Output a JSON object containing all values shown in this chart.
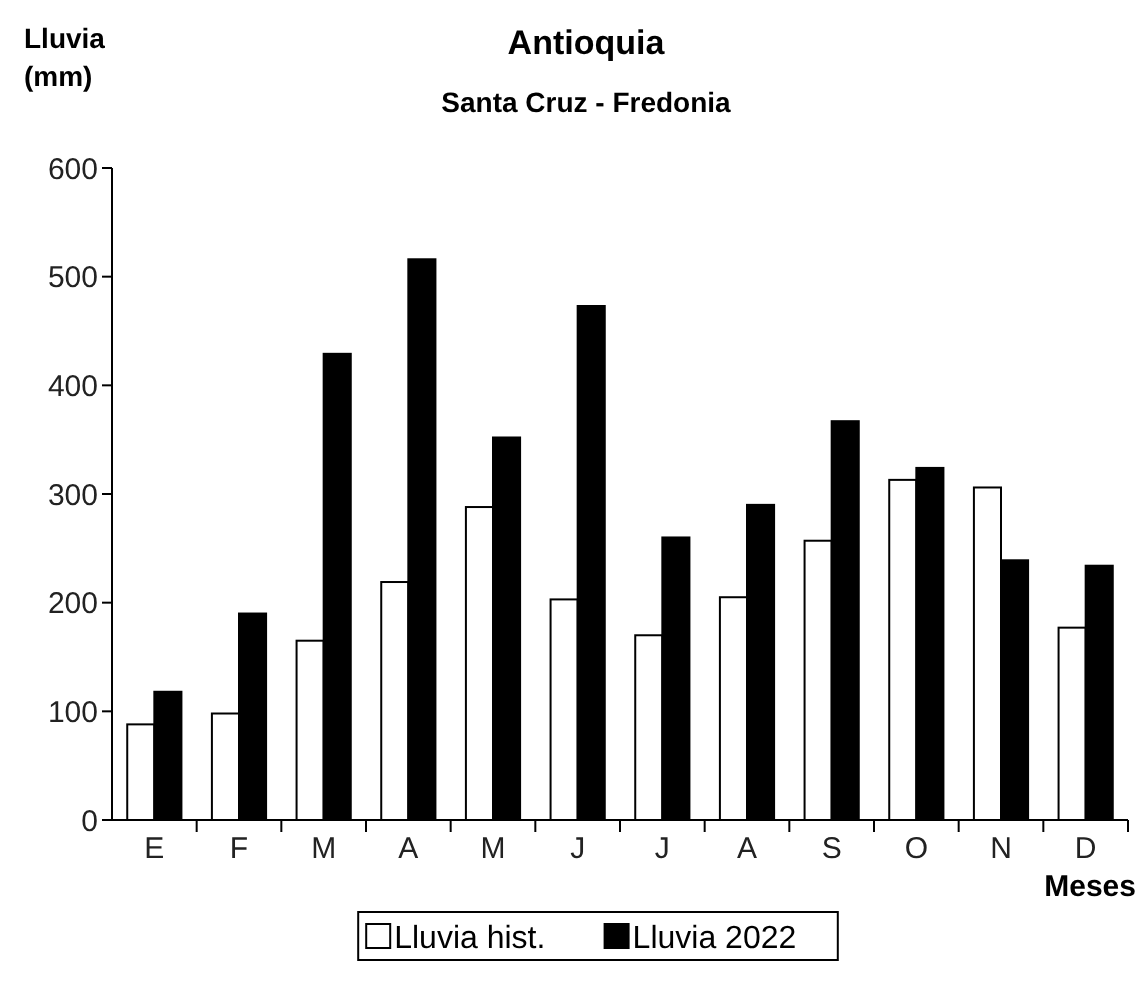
{
  "chart_data": {
    "type": "bar",
    "title": "Antioquia",
    "subtitle": "Santa Cruz - Fredonia",
    "xlabel": "Meses",
    "ylabel": "Lluvia\n(mm)",
    "categories": [
      "E",
      "F",
      "M",
      "A",
      "M",
      "J",
      "J",
      "A",
      "S",
      "O",
      "N",
      "D"
    ],
    "series": [
      {
        "name": "Lluvia hist.",
        "color": "#ffffff",
        "values": [
          88,
          98,
          165,
          219,
          288,
          203,
          170,
          205,
          257,
          313,
          306,
          177
        ]
      },
      {
        "name": "Lluvia 2022",
        "color": "#000000",
        "values": [
          118,
          190,
          429,
          516,
          352,
          473,
          260,
          290,
          367,
          324,
          239,
          234
        ]
      }
    ],
    "ylim": [
      0,
      600
    ],
    "yticks": [
      0,
      100,
      200,
      300,
      400,
      500,
      600
    ],
    "grid": false,
    "legend": "bottom"
  }
}
